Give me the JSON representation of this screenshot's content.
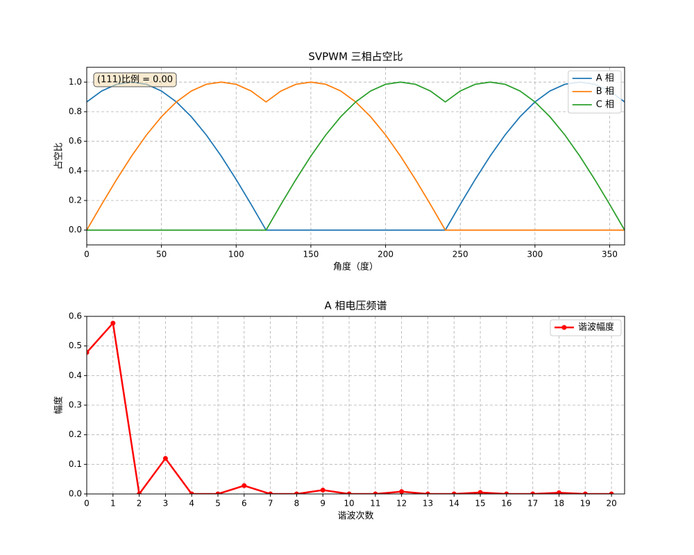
{
  "chart_data": [
    {
      "type": "line",
      "title": "SVPWM 三相占空比",
      "xlabel": "角度（度）",
      "ylabel": "占空比",
      "annotation": "(111)比例 = 0.00",
      "x": [
        0,
        10,
        20,
        30,
        40,
        50,
        60,
        70,
        80,
        90,
        100,
        110,
        120,
        130,
        140,
        150,
        160,
        170,
        180,
        190,
        200,
        210,
        220,
        230,
        240,
        250,
        260,
        270,
        280,
        290,
        300,
        310,
        320,
        330,
        340,
        350,
        360
      ],
      "series": [
        {
          "name": "A 相",
          "color": "#1f77b4",
          "values": [
            0.866,
            0.94,
            0.985,
            1,
            0.985,
            0.94,
            0.866,
            0.766,
            0.643,
            0.5,
            0.342,
            0.174,
            0,
            0,
            0,
            0,
            0,
            0,
            0,
            0,
            0,
            0,
            0,
            0,
            0,
            0.174,
            0.342,
            0.5,
            0.643,
            0.766,
            0.866,
            0.94,
            0.985,
            1,
            0.985,
            0.94,
            0.866
          ]
        },
        {
          "name": "B 相",
          "color": "#ff7f0e",
          "values": [
            0,
            0.174,
            0.342,
            0.5,
            0.643,
            0.766,
            0.866,
            0.94,
            0.985,
            1,
            0.985,
            0.94,
            0.866,
            0.94,
            0.985,
            1,
            0.985,
            0.94,
            0.866,
            0.766,
            0.643,
            0.5,
            0.342,
            0.174,
            0,
            0,
            0,
            0,
            0,
            0,
            0,
            0,
            0,
            0,
            0,
            0,
            0
          ]
        },
        {
          "name": "C 相",
          "color": "#2ca02c",
          "values": [
            0,
            0,
            0,
            0,
            0,
            0,
            0,
            0,
            0,
            0,
            0,
            0,
            0,
            0.174,
            0.342,
            0.5,
            0.643,
            0.766,
            0.866,
            0.94,
            0.985,
            1,
            0.985,
            0.94,
            0.866,
            0.94,
            0.985,
            1,
            0.985,
            0.94,
            0.866,
            0.766,
            0.643,
            0.5,
            0.342,
            0.174,
            0
          ]
        }
      ],
      "xlim": [
        0,
        360
      ],
      "xticks": [
        0,
        50,
        100,
        150,
        200,
        250,
        300,
        350
      ],
      "ylim": [
        -0.1,
        1.1
      ],
      "yticks": [
        {
          "value": 0,
          "label": "0.0"
        },
        {
          "value": 0.2,
          "label": "0.2"
        },
        {
          "value": 0.4,
          "label": "0.4"
        },
        {
          "value": 0.6,
          "label": "0.6"
        },
        {
          "value": 0.8,
          "label": "0.8"
        },
        {
          "value": 1,
          "label": "1.0"
        }
      ],
      "grid": true,
      "legend": "upper right"
    },
    {
      "type": "line",
      "title": "A 相电压频谱",
      "xlabel": "谐波次数",
      "ylabel": "幅度",
      "x": [
        0,
        1,
        2,
        3,
        4,
        5,
        6,
        7,
        8,
        9,
        10,
        11,
        12,
        13,
        14,
        15,
        16,
        17,
        18,
        19,
        20
      ],
      "series": [
        {
          "name": "谐波幅度",
          "color": "#ff0000",
          "marker": "o",
          "values": [
            0.478,
            0.577,
            0,
            0.12,
            0,
            0,
            0.028,
            0,
            0,
            0.013,
            0,
            0,
            0.008,
            0,
            0,
            0.005,
            0,
            0,
            0.004,
            0,
            0
          ]
        }
      ],
      "xlim": [
        0,
        20.5
      ],
      "xticks": [
        0,
        1,
        2,
        3,
        4,
        5,
        6,
        7,
        8,
        9,
        10,
        11,
        12,
        13,
        14,
        15,
        16,
        17,
        18,
        19,
        20
      ],
      "ylim": [
        0,
        0.6
      ],
      "yticks": [
        {
          "value": 0,
          "label": "0.0"
        },
        {
          "value": 0.1,
          "label": "0.1"
        },
        {
          "value": 0.2,
          "label": "0.2"
        },
        {
          "value": 0.3,
          "label": "0.3"
        },
        {
          "value": 0.4,
          "label": "0.4"
        },
        {
          "value": 0.5,
          "label": "0.5"
        },
        {
          "value": 0.6,
          "label": "0.6"
        }
      ],
      "grid": true,
      "legend": "upper right"
    }
  ]
}
